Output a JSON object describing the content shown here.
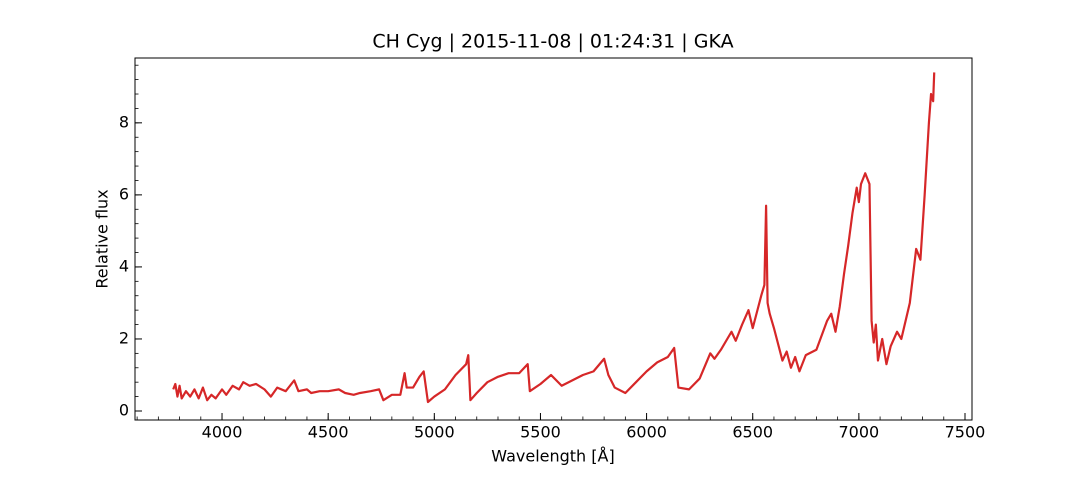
{
  "chart_data": {
    "type": "line",
    "title": "CH Cyg | 2015-11-08 | 01:24:31 | GKA",
    "xlabel": "Wavelength [Å]",
    "ylabel": "Relative flux",
    "xlim": [
      3590,
      7533
    ],
    "ylim": [
      -0.25,
      9.8
    ],
    "xticks": [
      4000,
      4500,
      5000,
      5500,
      6000,
      6500,
      7000,
      7500
    ],
    "yticks": [
      0,
      2,
      4,
      6,
      8
    ],
    "tick_direction": "in",
    "minor_ticks": true,
    "grid": false,
    "series": [
      {
        "name": "CH Cyg",
        "color": "#d62728",
        "x": [
          3770,
          3780,
          3790,
          3800,
          3810,
          3830,
          3850,
          3870,
          3890,
          3910,
          3930,
          3950,
          3970,
          4000,
          4020,
          4050,
          4080,
          4100,
          4130,
          4160,
          4200,
          4230,
          4260,
          4300,
          4340,
          4360,
          4400,
          4420,
          4460,
          4500,
          4550,
          4580,
          4620,
          4650,
          4700,
          4740,
          4760,
          4800,
          4840,
          4860,
          4870,
          4900,
          4930,
          4950,
          4970,
          5000,
          5050,
          5100,
          5150,
          5160,
          5170,
          5200,
          5250,
          5300,
          5350,
          5400,
          5440,
          5450,
          5500,
          5550,
          5600,
          5650,
          5700,
          5750,
          5800,
          5820,
          5850,
          5900,
          5950,
          6000,
          6050,
          6100,
          6130,
          6150,
          6200,
          6250,
          6300,
          6320,
          6350,
          6400,
          6420,
          6450,
          6480,
          6500,
          6540,
          6555,
          6563,
          6570,
          6580,
          6600,
          6640,
          6660,
          6680,
          6700,
          6720,
          6750,
          6800,
          6850,
          6870,
          6890,
          6910,
          6930,
          6950,
          6970,
          6990,
          7000,
          7010,
          7030,
          7050,
          7060,
          7070,
          7080,
          7090,
          7110,
          7130,
          7150,
          7180,
          7200,
          7220,
          7240,
          7270,
          7290,
          7310,
          7330,
          7340,
          7350,
          7355
        ],
        "values": [
          0.6,
          0.75,
          0.4,
          0.7,
          0.35,
          0.55,
          0.4,
          0.6,
          0.35,
          0.65,
          0.3,
          0.45,
          0.35,
          0.6,
          0.45,
          0.7,
          0.6,
          0.8,
          0.7,
          0.75,
          0.6,
          0.4,
          0.65,
          0.55,
          0.85,
          0.55,
          0.6,
          0.5,
          0.55,
          0.55,
          0.6,
          0.5,
          0.45,
          0.5,
          0.55,
          0.6,
          0.3,
          0.45,
          0.45,
          1.05,
          0.65,
          0.65,
          0.95,
          1.1,
          0.25,
          0.4,
          0.6,
          1.0,
          1.3,
          1.55,
          0.3,
          0.5,
          0.8,
          0.95,
          1.05,
          1.05,
          1.3,
          0.55,
          0.75,
          1.0,
          0.7,
          0.85,
          1.0,
          1.1,
          1.45,
          1.0,
          0.65,
          0.5,
          0.8,
          1.1,
          1.35,
          1.5,
          1.75,
          0.65,
          0.6,
          0.9,
          1.6,
          1.45,
          1.7,
          2.2,
          1.95,
          2.4,
          2.8,
          2.3,
          3.2,
          3.5,
          5.7,
          3.0,
          2.7,
          2.3,
          1.4,
          1.65,
          1.2,
          1.5,
          1.1,
          1.55,
          1.7,
          2.5,
          2.7,
          2.2,
          2.9,
          3.8,
          4.6,
          5.5,
          6.2,
          5.8,
          6.3,
          6.6,
          6.3,
          2.5,
          1.9,
          2.4,
          1.4,
          2.0,
          1.3,
          1.8,
          2.2,
          2.0,
          2.5,
          3.0,
          4.5,
          4.2,
          6.0,
          8.0,
          8.8,
          8.6,
          9.4
        ]
      }
    ]
  }
}
